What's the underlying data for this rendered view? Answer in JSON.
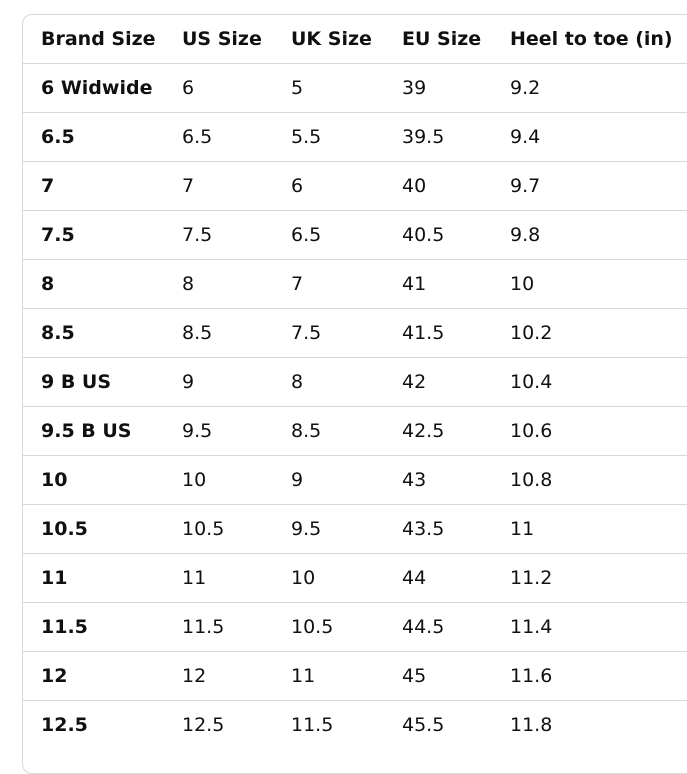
{
  "table": {
    "headers": [
      "Brand Size",
      "US Size",
      "UK Size",
      "EU Size",
      "Heel to toe (in)"
    ],
    "rows": [
      [
        "6 Widwide",
        "6",
        "5",
        "39",
        "9.2"
      ],
      [
        "6.5",
        "6.5",
        "5.5",
        "39.5",
        "9.4"
      ],
      [
        "7",
        "7",
        "6",
        "40",
        "9.7"
      ],
      [
        "7.5",
        "7.5",
        "6.5",
        "40.5",
        "9.8"
      ],
      [
        "8",
        "8",
        "7",
        "41",
        "10"
      ],
      [
        "8.5",
        "8.5",
        "7.5",
        "41.5",
        "10.2"
      ],
      [
        "9 B US",
        "9",
        "8",
        "42",
        "10.4"
      ],
      [
        "9.5 B US",
        "9.5",
        "8.5",
        "42.5",
        "10.6"
      ],
      [
        "10",
        "10",
        "9",
        "43",
        "10.8"
      ],
      [
        "10.5",
        "10.5",
        "9.5",
        "43.5",
        "11"
      ],
      [
        "11",
        "11",
        "10",
        "44",
        "11.2"
      ],
      [
        "11.5",
        "11.5",
        "10.5",
        "44.5",
        "11.4"
      ],
      [
        "12",
        "12",
        "11",
        "45",
        "11.6"
      ],
      [
        "12.5",
        "12.5",
        "11.5",
        "45.5",
        "11.8"
      ]
    ]
  }
}
